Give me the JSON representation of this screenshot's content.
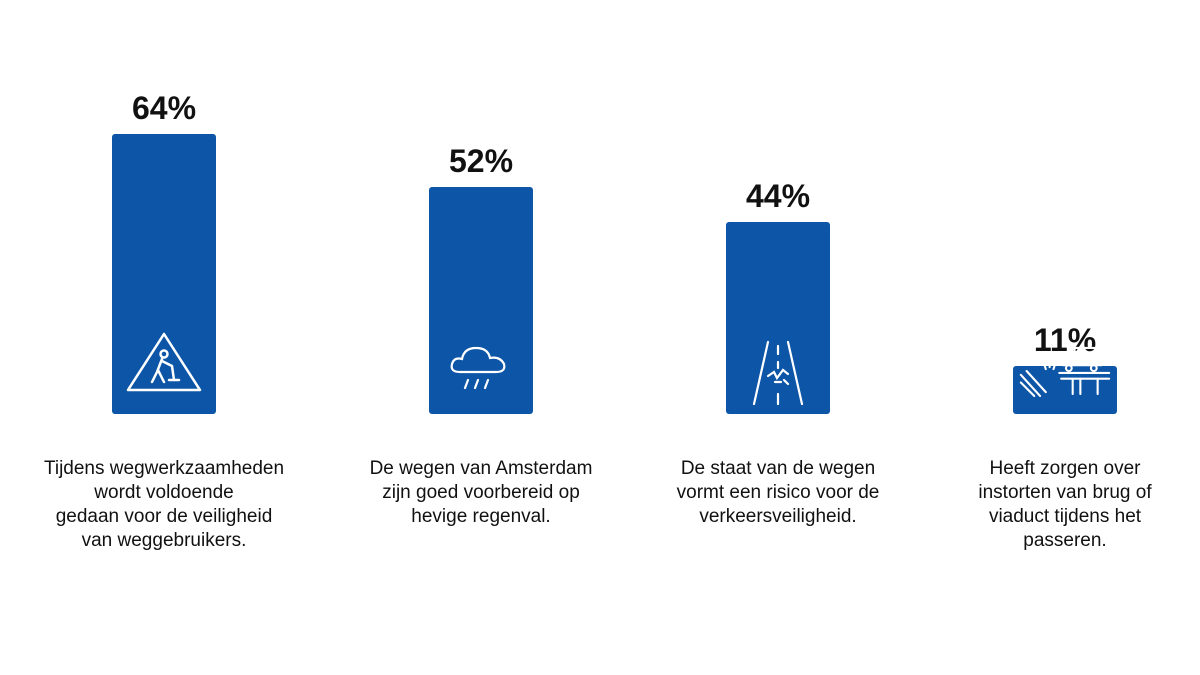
{
  "chart_data": {
    "type": "bar",
    "categories": [
      "Tijdens wegwerkzaamheden wordt voldoende gedaan voor de veiligheid van weggebruikers.",
      "De wegen van Amsterdam zijn goed voorbereid op hevige regenval.",
      "De staat van de wegen vormt een risico voor de verkeersveiligheid.",
      "Heeft zorgen over instorten van brug of viaduct tijdens het passeren."
    ],
    "category_lines": [
      [
        "Tijdens wegwerkzaamheden",
        "wordt voldoende",
        "gedaan voor de veiligheid",
        "van weggebruikers."
      ],
      [
        "De wegen van Amsterdam",
        "zijn goed voorbereid op",
        "hevige regenval."
      ],
      [
        "De staat van de wegen",
        "vormt een risico voor de",
        "verkeersveiligheid."
      ],
      [
        "Heeft zorgen over",
        "instorten van brug of",
        "viaduct tijdens het",
        "passeren."
      ]
    ],
    "values": [
      64,
      52,
      44,
      11
    ],
    "value_labels": [
      "64%",
      "52%",
      "44%",
      "11%"
    ],
    "icons": [
      "road-works-warning-icon",
      "rain-cloud-icon",
      "damaged-road-icon",
      "truck-on-collapsing-bridge-icon"
    ],
    "ylim": [
      0,
      64
    ],
    "grid": false,
    "legend": "none",
    "bar_color": "#0d55a6",
    "text_color": "#111111"
  }
}
